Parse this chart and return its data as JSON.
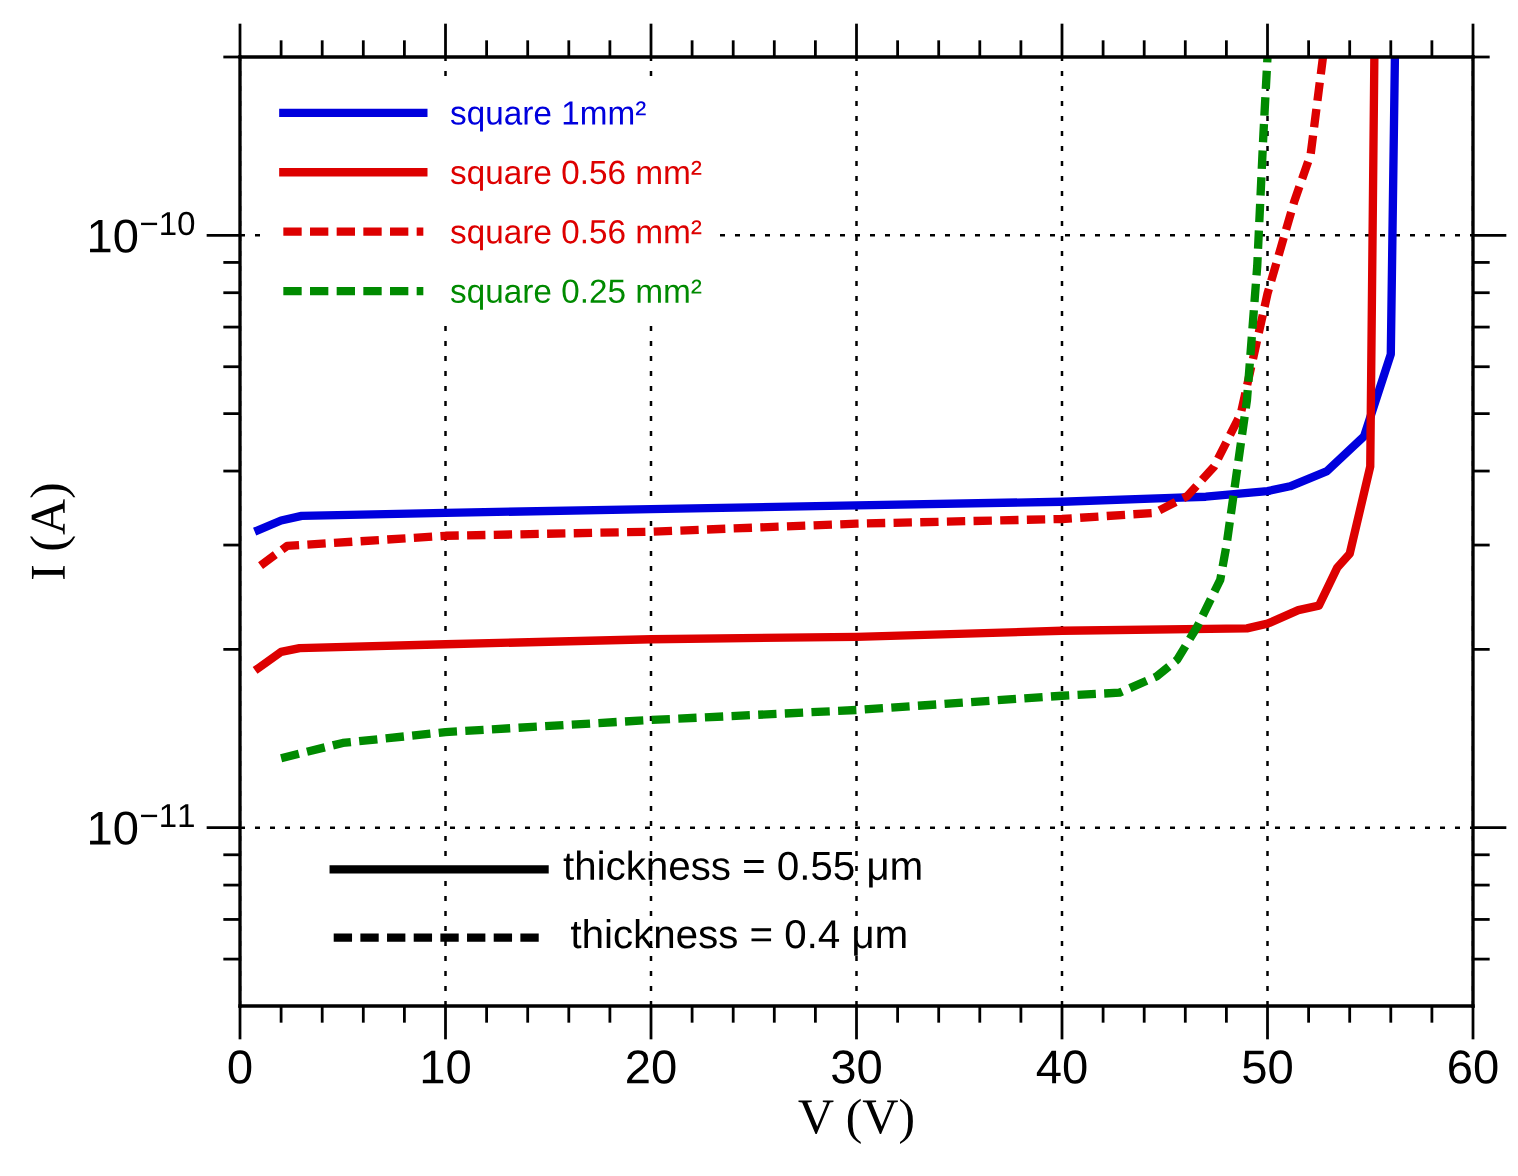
{
  "chart_data": {
    "type": "line",
    "xlabel": "V (V)",
    "ylabel": "I (A)",
    "log": "y",
    "xlim": [
      0,
      60
    ],
    "xticks": [
      0,
      {
        "value": 2,
        "label": null
      },
      {
        "value": 4,
        "label": null
      },
      {
        "value": 6,
        "label": null
      },
      {
        "value": 8,
        "label": null
      },
      10,
      {
        "value": 12,
        "label": null
      },
      {
        "value": 14,
        "label": null
      },
      {
        "value": 16,
        "label": null
      },
      {
        "value": 18,
        "label": null
      },
      20,
      {
        "value": 22,
        "label": null
      },
      {
        "value": 24,
        "label": null
      },
      {
        "value": 26,
        "label": null
      },
      {
        "value": 28,
        "label": null
      },
      30,
      {
        "value": 32,
        "label": null
      },
      {
        "value": 34,
        "label": null
      },
      {
        "value": 36,
        "label": null
      },
      {
        "value": 38,
        "label": null
      },
      40,
      {
        "value": 42,
        "label": null
      },
      {
        "value": 44,
        "label": null
      },
      {
        "value": 46,
        "label": null
      },
      {
        "value": 48,
        "label": null
      },
      50,
      {
        "value": 52,
        "label": null
      },
      {
        "value": 54,
        "label": null
      },
      {
        "value": 56,
        "label": null
      },
      {
        "value": 58,
        "label": null
      },
      60
    ],
    "ylim": [
      5e-12,
      2e-10
    ],
    "yticks": [
      {
        "value": 6e-12,
        "label": null
      },
      {
        "value": 7e-12,
        "label": null
      },
      {
        "value": 8e-12,
        "label": null
      },
      {
        "value": 9e-12,
        "label": null
      },
      {
        "value": 1e-11,
        "label": "10$^{−11}$"
      },
      {
        "value": 2e-11,
        "label": null
      },
      {
        "value": 3e-11,
        "label": null
      },
      {
        "value": 4e-11,
        "label": null
      },
      {
        "value": 5e-11,
        "label": null
      },
      {
        "value": 6e-11,
        "label": null
      },
      {
        "value": 7e-11,
        "label": null
      },
      {
        "value": 8e-11,
        "label": null
      },
      {
        "value": 9e-11,
        "label": null
      },
      {
        "value": 1e-10,
        "label": "10$^{−10}$"
      },
      {
        "value": 2e-10,
        "label": null
      }
    ],
    "grid": true,
    "legend": "top left",
    "annotations": [
      "thickness = 0.55 μm",
      "thickness = 0.4 μm"
    ],
    "series": [
      {
        "name": "square 1mm²",
        "color": "#0000dd",
        "line_style": "solid",
        "x": [
          0.9,
          2.0,
          3.0,
          10,
          20,
          30,
          40,
          45,
          47,
          50,
          51.1,
          52.9,
          54.7,
          56.0,
          56.2
        ],
        "values": [
          3.18e-11,
          3.3e-11,
          3.36e-11,
          3.4e-11,
          3.45e-11,
          3.5e-11,
          3.55e-11,
          3.6e-11,
          3.62e-11,
          3.7e-11,
          3.77e-11,
          4e-11,
          4.58e-11,
          6.3e-11,
          2e-10
        ]
      },
      {
        "name": "square 0.56 mm²",
        "color": "#dd0000",
        "line_style": "solid",
        "x": [
          0.9,
          2.0,
          2.9,
          10,
          20,
          30,
          40,
          49,
          50,
          51.5,
          52.5,
          53.4,
          54.0,
          55.0,
          55.2
        ],
        "values": [
          1.86e-11,
          1.98e-11,
          2.01e-11,
          2.04e-11,
          2.08e-11,
          2.1e-11,
          2.15e-11,
          2.17e-11,
          2.21e-11,
          2.33e-11,
          2.37e-11,
          2.75e-11,
          2.9e-11,
          4.07e-11,
          2e-10
        ]
      },
      {
        "name": "square 0.56 mm²",
        "color": "#dd0000",
        "line_style": "dashed",
        "x": [
          1.0,
          2.3,
          10,
          20,
          30,
          40,
          44.5,
          46.1,
          47.4,
          48.7,
          50.0,
          51.3,
          52.1,
          52.7
        ],
        "values": [
          2.77e-11,
          2.99e-11,
          3.11e-11,
          3.16e-11,
          3.26e-11,
          3.32e-11,
          3.4e-11,
          3.63e-11,
          4.07e-11,
          5e-11,
          7.97e-11,
          1.14e-10,
          1.37e-10,
          2e-10
        ]
      },
      {
        "name": "square 0.25 mm²",
        "color": "#008a00",
        "line_style": "dashed",
        "x": [
          2.0,
          5,
          10,
          20,
          30,
          40,
          42.8,
          44.6,
          45.6,
          46.6,
          47.7,
          48.0,
          49.0,
          49.5,
          49.8,
          50.0
        ],
        "values": [
          1.31e-11,
          1.39e-11,
          1.45e-11,
          1.52e-11,
          1.58e-11,
          1.67e-11,
          1.69e-11,
          1.8e-11,
          1.92e-11,
          2.19e-11,
          2.62e-11,
          2.99e-11,
          5.27e-11,
          8.87e-11,
          1.48e-10,
          2e-10
        ]
      }
    ]
  }
}
